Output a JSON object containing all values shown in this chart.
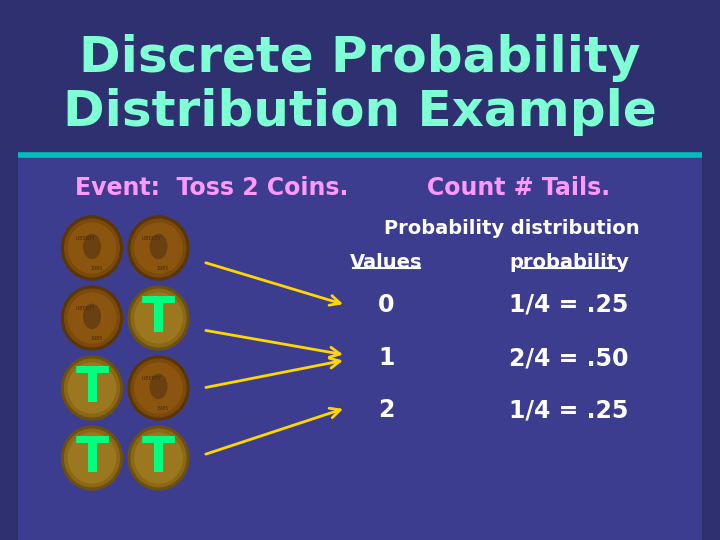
{
  "title_line1": "Discrete Probability",
  "title_line2": "Distribution Example",
  "title_color": "#7FFFD4",
  "title_fontsize": 36,
  "bg_color_top": "#2E3070",
  "bg_color_bottom": "#3D3D8F",
  "divider_color": "#00BFBF",
  "event_text": "Event:  Toss 2 Coins.",
  "event_color": "#FF99FF",
  "count_text": "Count # Tails.",
  "count_color": "#FF99FF",
  "prob_dist_text": "Probability distribution",
  "values_label": "Values",
  "prob_label": "probability",
  "label_color": "#FFFFFF",
  "values": [
    0,
    1,
    2
  ],
  "probabilities": [
    "1/4 = .25",
    "2/4 = .50",
    "1/4 = .25"
  ],
  "data_color": "#FFFFFF",
  "coin_T_color": "#00FF7F",
  "arrow_color": "#FFD700",
  "font_family": "DejaVu Sans"
}
